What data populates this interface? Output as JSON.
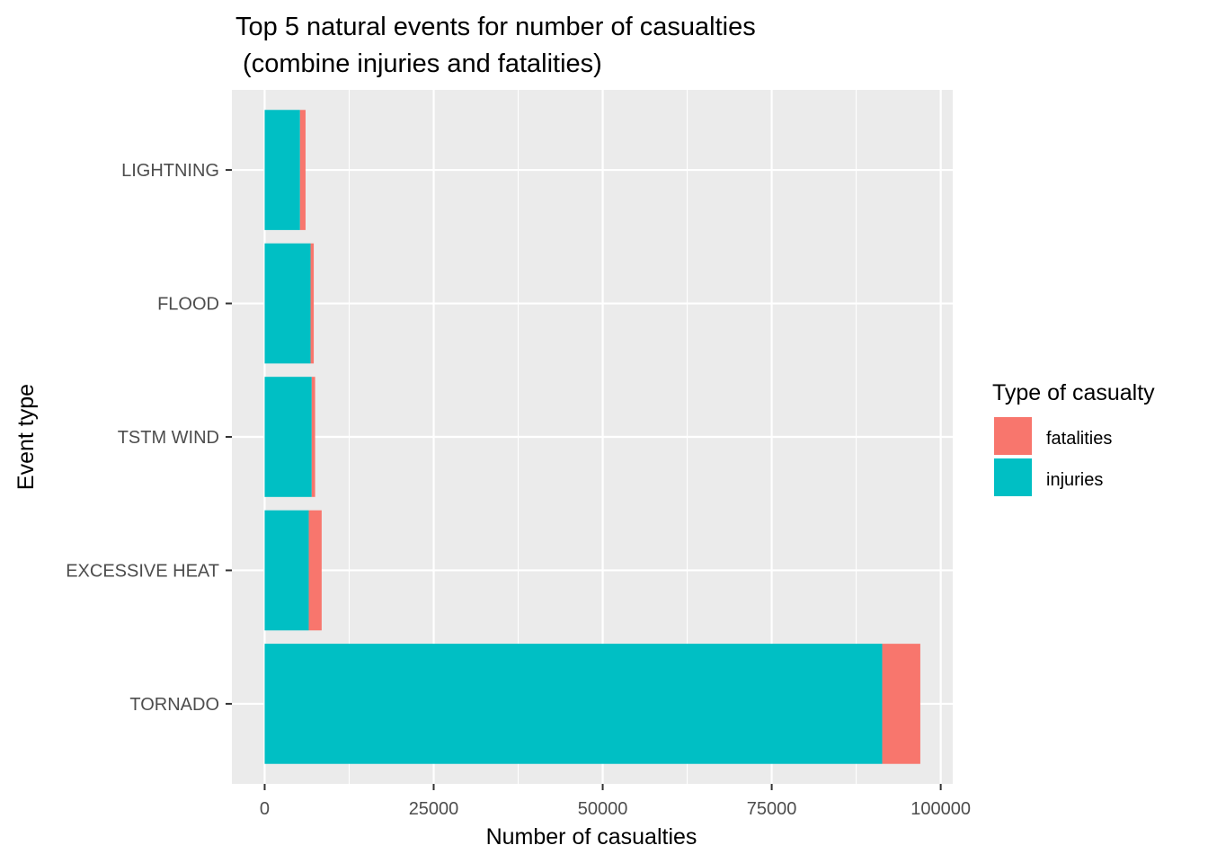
{
  "chart_data": {
    "type": "bar",
    "orientation": "horizontal",
    "stacked": true,
    "title_lines": [
      "Top 5 natural events for number of casualties",
      " (combine injuries and fatalities)"
    ],
    "xlabel": "Number of casualties",
    "ylabel": "Event type",
    "categories": [
      "TORNADO",
      "EXCESSIVE HEAT",
      "TSTM WIND",
      "FLOOD",
      "LIGHTNING"
    ],
    "series": [
      {
        "name": "injuries",
        "color": "#00BFC4",
        "values": [
          91346,
          6525,
          6957,
          6789,
          5230
        ]
      },
      {
        "name": "fatalities",
        "color": "#F8766D",
        "values": [
          5633,
          1903,
          504,
          470,
          816
        ]
      }
    ],
    "xlim": [
      -4849,
      101778
    ],
    "x_ticks": [
      "0",
      "25000",
      "50000",
      "75000",
      "100000"
    ],
    "x_tick_values": [
      0,
      25000,
      50000,
      75000,
      100000
    ],
    "grid": true,
    "panel_background": "#EBEBEB",
    "legend": {
      "title": "Type of casualty",
      "placement": "right",
      "entries": [
        {
          "label": "fatalities",
          "color": "#F8766D"
        },
        {
          "label": "injuries",
          "color": "#00BFC4"
        }
      ]
    }
  }
}
